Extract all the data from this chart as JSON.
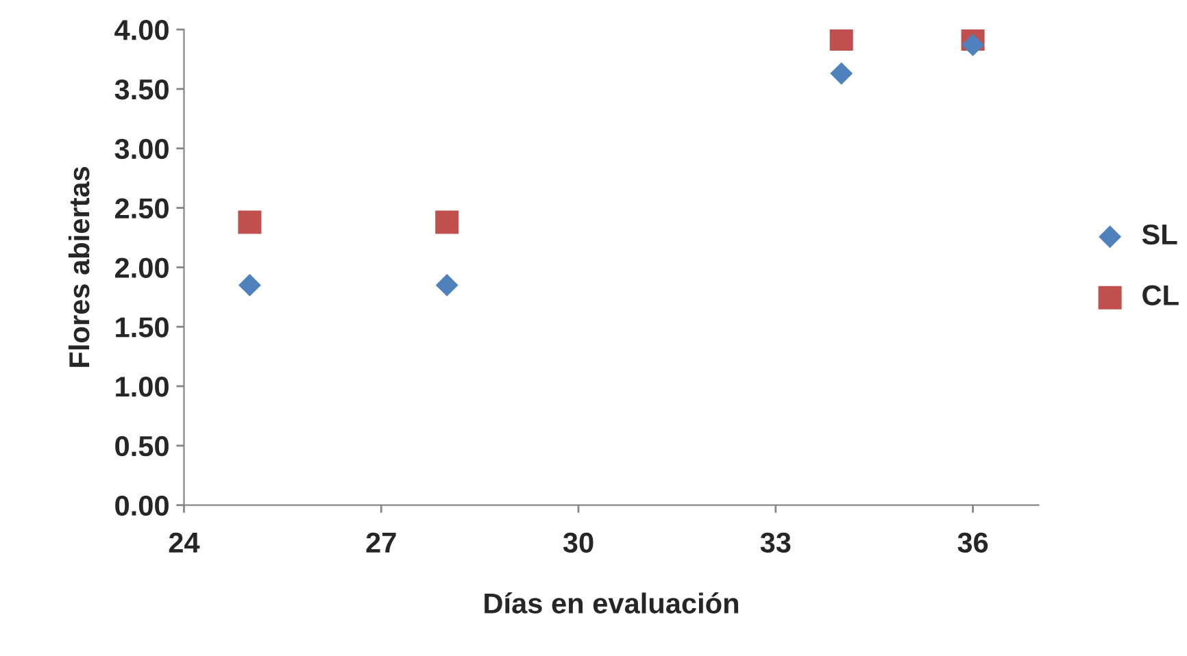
{
  "chart_data": {
    "type": "scatter",
    "xlabel": "Días en evaluación",
    "ylabel": "Flores abiertas",
    "x": [
      25,
      28,
      34,
      36
    ],
    "series": [
      {
        "name": "SL",
        "color": "#4f81bd",
        "marker": "diamond",
        "values": [
          1.85,
          1.85,
          3.63,
          3.87
        ]
      },
      {
        "name": "CL",
        "color": "#c0504d",
        "marker": "square",
        "values": [
          2.38,
          2.38,
          3.92,
          3.92
        ]
      }
    ],
    "xlim": [
      24,
      37
    ],
    "xticks": [
      24,
      27,
      30,
      33,
      36
    ],
    "ylim": [
      0,
      4
    ],
    "yticks": [
      {
        "value": 0,
        "label": "0.00"
      },
      {
        "value": 0.5,
        "label": "0.50"
      },
      {
        "value": 1,
        "label": "1.00"
      },
      {
        "value": 1.5,
        "label": "1.50"
      },
      {
        "value": 2,
        "label": "2.00"
      },
      {
        "value": 2.5,
        "label": "2.50"
      },
      {
        "value": 3,
        "label": "3.00"
      },
      {
        "value": 3.5,
        "label": "3.50"
      },
      {
        "value": 4,
        "label": "4.00"
      }
    ],
    "grid": false,
    "legend": "right"
  }
}
